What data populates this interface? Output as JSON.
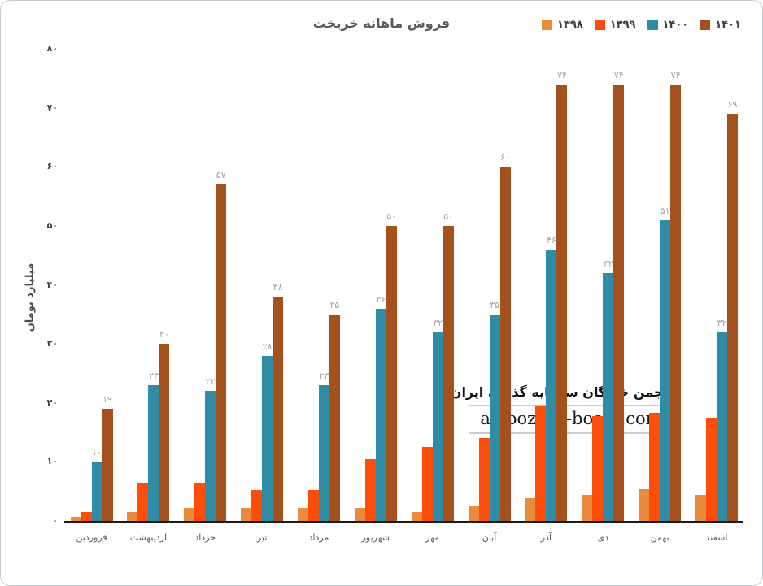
{
  "title": "فروش ماهانه خریخت",
  "legend": [
    {
      "label": "۱۳۹۸",
      "color": "#e98a3c"
    },
    {
      "label": "۱۳۹۹",
      "color": "#fc4e08"
    },
    {
      "label": "۱۴۰۰",
      "color": "#2e8ca6"
    },
    {
      "label": "۱۴۰۱",
      "color": "#a4511d"
    }
  ],
  "y_axis": {
    "title": "میلیارد تومان",
    "ticks": [
      {
        "label": "۸۰",
        "value": 80
      },
      {
        "label": "۷۰",
        "value": 70
      },
      {
        "label": "۶۰",
        "value": 60
      },
      {
        "label": "۵۰",
        "value": 50
      },
      {
        "label": "۴۰",
        "value": 40
      },
      {
        "label": "۳۰",
        "value": 30
      },
      {
        "label": "۲۰",
        "value": 20
      },
      {
        "label": "۱۰",
        "value": 10
      },
      {
        "label": "۰",
        "value": 0
      }
    ]
  },
  "watermark": {
    "line1": "انجمن خبرگان سرمایه گذاری ایران",
    "line2": "amoozesh-boors.com"
  },
  "chart_data": {
    "type": "bar",
    "title": "فروش ماهانه خریخت",
    "xlabel": "",
    "ylabel": "میلیارد تومان",
    "ylim": [
      0,
      80
    ],
    "grid": false,
    "legend_position": "top-right",
    "categories": [
      "فروردین",
      "اردیبهشت",
      "خرداد",
      "تیر",
      "مرداد",
      "شهریور",
      "مهر",
      "آبان",
      "آذر",
      "دی",
      "بهمن",
      "اسفند"
    ],
    "series": [
      {
        "name": "۱۳۹۸",
        "color": "#e98a3c",
        "values": [
          0.7,
          1.5,
          2.2,
          2.2,
          2.2,
          2.2,
          1.5,
          2.5,
          3.8,
          4.4,
          5.4,
          4.4
        ],
        "data_labels": [
          "",
          "",
          "",
          "",
          "",
          "",
          "",
          "",
          "",
          "",
          "",
          ""
        ]
      },
      {
        "name": "۱۳۹۹",
        "color": "#fc4e08",
        "values": [
          1.5,
          6.5,
          6.5,
          5.3,
          5.3,
          10.5,
          12.5,
          14,
          19.5,
          17.7,
          18.3,
          17.5
        ],
        "data_labels": [
          "",
          "",
          "",
          "",
          "",
          "",
          "",
          "",
          "",
          "",
          "",
          ""
        ]
      },
      {
        "name": "۱۴۰۰",
        "color": "#2e8ca6",
        "values": [
          10,
          23,
          22,
          28,
          23,
          36,
          32,
          35,
          46,
          42,
          51,
          32
        ],
        "data_labels": [
          "۱۰",
          "۲۳",
          "۲۲",
          "۲۸",
          "۲۳",
          "۳۶",
          "۳۲",
          "۳۵",
          "۴۶",
          "۴۲",
          "۵۱",
          "۳۲"
        ]
      },
      {
        "name": "۱۴۰۱",
        "color": "#a4511d",
        "values": [
          19,
          30,
          57,
          38,
          35,
          50,
          50,
          60,
          74,
          74,
          74,
          69
        ],
        "data_labels": [
          "۱۹",
          "۳۰",
          "۵۷",
          "۳۸",
          "۳۵",
          "۵۰",
          "۵۰",
          "۶۰",
          "۷۴",
          "۷۴",
          "۷۴",
          "۶۹"
        ]
      }
    ]
  }
}
